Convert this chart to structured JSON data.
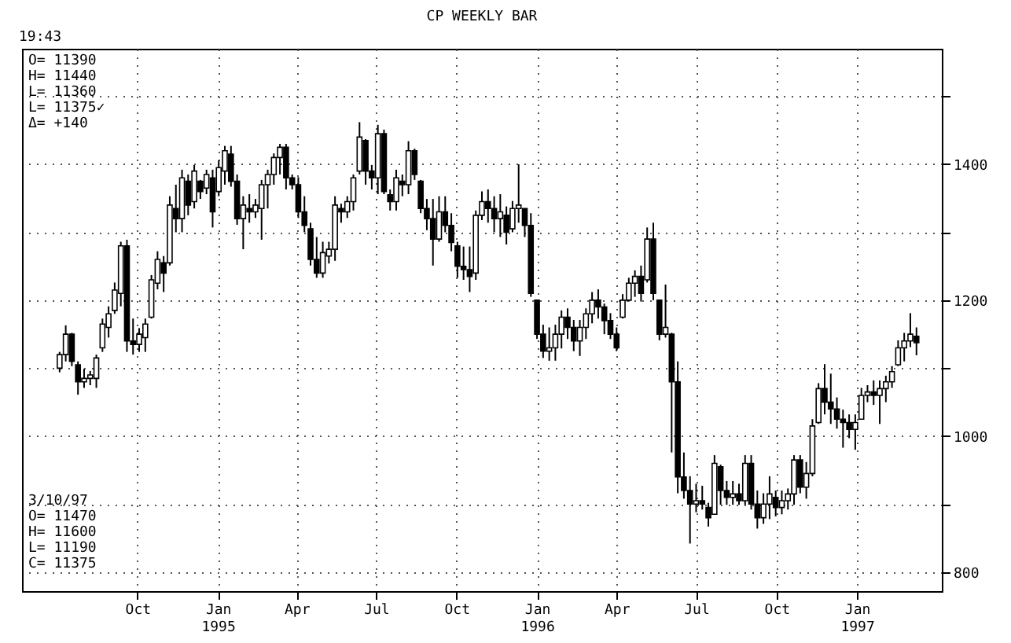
{
  "chart_data": {
    "type": "candlestick",
    "title": "CP WEEKLY BAR",
    "annotations": [
      "19:43",
      "O= 11390\nH= 11440\nL= 11360\nL= 11375✓\nΔ=  +140",
      "3/10/97\nO= 11470\nH= 11600\nL= 11190\nC= 11375"
    ],
    "x": [
      "1994-07-04",
      "1994-07-11",
      "1994-07-18",
      "1994-07-25",
      "1994-08-01",
      "1994-08-08",
      "1994-08-15",
      "1994-08-22",
      "1994-08-29",
      "1994-09-05",
      "1994-09-12",
      "1994-09-19",
      "1994-09-26",
      "1994-10-03",
      "1994-10-10",
      "1994-10-17",
      "1994-10-24",
      "1994-10-31",
      "1994-11-07",
      "1994-11-14",
      "1994-11-21",
      "1994-11-28",
      "1994-12-05",
      "1994-12-12",
      "1994-12-19",
      "1994-12-26",
      "1995-01-02",
      "1995-01-09",
      "1995-01-16",
      "1995-01-23",
      "1995-01-30",
      "1995-02-06",
      "1995-02-13",
      "1995-02-20",
      "1995-02-27",
      "1995-03-06",
      "1995-03-13",
      "1995-03-20",
      "1995-03-27",
      "1995-04-03",
      "1995-04-10",
      "1995-04-17",
      "1995-04-24",
      "1995-05-01",
      "1995-05-08",
      "1995-05-15",
      "1995-05-22",
      "1995-05-29",
      "1995-06-05",
      "1995-06-12",
      "1995-06-19",
      "1995-06-26",
      "1995-07-03",
      "1995-07-10",
      "1995-07-17",
      "1995-07-24",
      "1995-07-31",
      "1995-08-07",
      "1995-08-14",
      "1995-08-21",
      "1995-08-28",
      "1995-09-04",
      "1995-09-11",
      "1995-09-18",
      "1995-09-25",
      "1995-10-02",
      "1995-10-09",
      "1995-10-16",
      "1995-10-23",
      "1995-10-30",
      "1995-11-06",
      "1995-11-13",
      "1995-11-20",
      "1995-11-27",
      "1995-12-04",
      "1995-12-11",
      "1995-12-18",
      "1995-12-25",
      "1996-01-01",
      "1996-01-08",
      "1996-01-15",
      "1996-01-22",
      "1996-01-29",
      "1996-02-05",
      "1996-02-12",
      "1996-02-19",
      "1996-02-26",
      "1996-03-04",
      "1996-03-11",
      "1996-03-18",
      "1996-03-25",
      "1996-04-01",
      "1996-04-08",
      "1996-04-15",
      "1996-04-22",
      "1996-04-29",
      "1996-05-06",
      "1996-05-13",
      "1996-05-20",
      "1996-05-27",
      "1996-06-03",
      "1996-06-10",
      "1996-06-17",
      "1996-06-24",
      "1996-07-01",
      "1996-07-08",
      "1996-07-15",
      "1996-07-22",
      "1996-07-29",
      "1996-08-05",
      "1996-08-12",
      "1996-08-19",
      "1996-08-26",
      "1996-09-02",
      "1996-09-09",
      "1996-09-16",
      "1996-09-23",
      "1996-09-30",
      "1996-10-07",
      "1996-10-14",
      "1996-10-21",
      "1996-10-28",
      "1996-11-04",
      "1996-11-11",
      "1996-11-18",
      "1996-11-25",
      "1996-12-02",
      "1996-12-09",
      "1996-12-16",
      "1996-12-23",
      "1996-12-30",
      "1997-01-06",
      "1997-01-13",
      "1997-01-20",
      "1997-01-27",
      "1997-02-03",
      "1997-02-10",
      "1997-02-17",
      "1997-02-24",
      "1997-03-03",
      "1997-03-10"
    ],
    "ohlc": [
      [
        1100,
        1124,
        1094,
        1120
      ],
      [
        1120,
        1163,
        1110,
        1150
      ],
      [
        1150,
        1152,
        1103,
        1110
      ],
      [
        1105,
        1110,
        1061,
        1080
      ],
      [
        1080,
        1099,
        1071,
        1085
      ],
      [
        1085,
        1096,
        1075,
        1090
      ],
      [
        1085,
        1120,
        1071,
        1115
      ],
      [
        1130,
        1173,
        1124,
        1165
      ],
      [
        1160,
        1191,
        1145,
        1180
      ],
      [
        1185,
        1226,
        1180,
        1215
      ],
      [
        1210,
        1286,
        1191,
        1280
      ],
      [
        1280,
        1289,
        1124,
        1140
      ],
      [
        1140,
        1173,
        1120,
        1135
      ],
      [
        1135,
        1159,
        1124,
        1150
      ],
      [
        1145,
        1173,
        1124,
        1165
      ],
      [
        1175,
        1237,
        1173,
        1230
      ],
      [
        1225,
        1272,
        1216,
        1260
      ],
      [
        1255,
        1265,
        1212,
        1240
      ],
      [
        1255,
        1353,
        1251,
        1340
      ],
      [
        1335,
        1370,
        1300,
        1320
      ],
      [
        1320,
        1392,
        1300,
        1380
      ],
      [
        1375,
        1385,
        1325,
        1340
      ],
      [
        1345,
        1399,
        1335,
        1390
      ],
      [
        1375,
        1377,
        1349,
        1360
      ],
      [
        1365,
        1392,
        1356,
        1385
      ],
      [
        1380,
        1392,
        1307,
        1330
      ],
      [
        1360,
        1406,
        1353,
        1395
      ],
      [
        1390,
        1427,
        1370,
        1420
      ],
      [
        1415,
        1427,
        1367,
        1375
      ],
      [
        1375,
        1385,
        1311,
        1320
      ],
      [
        1320,
        1353,
        1275,
        1340
      ],
      [
        1335,
        1356,
        1314,
        1330
      ],
      [
        1330,
        1349,
        1321,
        1340
      ],
      [
        1335,
        1377,
        1289,
        1370
      ],
      [
        1370,
        1392,
        1335,
        1385
      ],
      [
        1385,
        1416,
        1370,
        1410
      ],
      [
        1410,
        1430,
        1385,
        1425
      ],
      [
        1425,
        1430,
        1363,
        1380
      ],
      [
        1380,
        1385,
        1363,
        1370
      ],
      [
        1370,
        1381,
        1321,
        1330
      ],
      [
        1330,
        1353,
        1300,
        1310
      ],
      [
        1305,
        1314,
        1251,
        1260
      ],
      [
        1260,
        1293,
        1233,
        1240
      ],
      [
        1240,
        1286,
        1233,
        1270
      ],
      [
        1265,
        1286,
        1254,
        1275
      ],
      [
        1275,
        1353,
        1258,
        1340
      ],
      [
        1335,
        1342,
        1314,
        1330
      ],
      [
        1330,
        1353,
        1321,
        1345
      ],
      [
        1345,
        1385,
        1332,
        1380
      ],
      [
        1390,
        1462,
        1385,
        1440
      ],
      [
        1435,
        1437,
        1370,
        1390
      ],
      [
        1390,
        1399,
        1363,
        1380
      ],
      [
        1380,
        1458,
        1356,
        1445
      ],
      [
        1445,
        1451,
        1356,
        1360
      ],
      [
        1355,
        1363,
        1332,
        1345
      ],
      [
        1345,
        1392,
        1332,
        1380
      ],
      [
        1375,
        1385,
        1353,
        1370
      ],
      [
        1370,
        1434,
        1356,
        1420
      ],
      [
        1420,
        1423,
        1377,
        1385
      ],
      [
        1375,
        1377,
        1328,
        1335
      ],
      [
        1335,
        1349,
        1303,
        1320
      ],
      [
        1320,
        1349,
        1251,
        1290
      ],
      [
        1290,
        1353,
        1286,
        1330
      ],
      [
        1330,
        1353,
        1300,
        1310
      ],
      [
        1310,
        1328,
        1272,
        1285
      ],
      [
        1280,
        1286,
        1233,
        1250
      ],
      [
        1250,
        1279,
        1230,
        1245
      ],
      [
        1245,
        1279,
        1212,
        1235
      ],
      [
        1240,
        1332,
        1230,
        1325
      ],
      [
        1325,
        1360,
        1318,
        1345
      ],
      [
        1345,
        1363,
        1314,
        1335
      ],
      [
        1335,
        1353,
        1300,
        1320
      ],
      [
        1320,
        1356,
        1293,
        1330
      ],
      [
        1325,
        1338,
        1282,
        1300
      ],
      [
        1305,
        1346,
        1300,
        1335
      ],
      [
        1335,
        1400,
        1314,
        1340
      ],
      [
        1335,
        1335,
        1293,
        1310
      ],
      [
        1310,
        1328,
        1205,
        1210
      ],
      [
        1200,
        1200,
        1143,
        1150
      ],
      [
        1150,
        1164,
        1115,
        1125
      ],
      [
        1125,
        1160,
        1111,
        1130
      ],
      [
        1130,
        1164,
        1111,
        1150
      ],
      [
        1150,
        1185,
        1129,
        1175
      ],
      [
        1175,
        1188,
        1143,
        1160
      ],
      [
        1160,
        1171,
        1125,
        1140
      ],
      [
        1140,
        1171,
        1118,
        1160
      ],
      [
        1160,
        1188,
        1143,
        1180
      ],
      [
        1180,
        1212,
        1166,
        1200
      ],
      [
        1200,
        1216,
        1173,
        1190
      ],
      [
        1190,
        1195,
        1150,
        1170
      ],
      [
        1170,
        1181,
        1143,
        1150
      ],
      [
        1150,
        1160,
        1125,
        1130
      ],
      [
        1175,
        1209,
        1173,
        1200
      ],
      [
        1200,
        1233,
        1198,
        1225
      ],
      [
        1225,
        1244,
        1205,
        1235
      ],
      [
        1235,
        1251,
        1198,
        1210
      ],
      [
        1230,
        1307,
        1226,
        1290
      ],
      [
        1290,
        1314,
        1200,
        1210
      ],
      [
        1200,
        1200,
        1141,
        1150
      ],
      [
        1150,
        1223,
        1145,
        1160
      ],
      [
        1150,
        1152,
        976,
        1080
      ],
      [
        1080,
        1110,
        916,
        940
      ],
      [
        940,
        976,
        908,
        920
      ],
      [
        920,
        941,
        842,
        900
      ],
      [
        900,
        930,
        888,
        905
      ],
      [
        905,
        927,
        892,
        900
      ],
      [
        895,
        902,
        867,
        880
      ],
      [
        885,
        972,
        885,
        960
      ],
      [
        955,
        958,
        899,
        920
      ],
      [
        920,
        934,
        899,
        910
      ],
      [
        910,
        934,
        899,
        915
      ],
      [
        915,
        930,
        899,
        905
      ],
      [
        905,
        972,
        899,
        960
      ],
      [
        960,
        972,
        892,
        900
      ],
      [
        900,
        920,
        864,
        880
      ],
      [
        880,
        916,
        871,
        900
      ],
      [
        900,
        941,
        878,
        915
      ],
      [
        910,
        920,
        882,
        895
      ],
      [
        895,
        920,
        885,
        905
      ],
      [
        905,
        923,
        892,
        915
      ],
      [
        915,
        972,
        899,
        965
      ],
      [
        965,
        972,
        916,
        925
      ],
      [
        925,
        962,
        908,
        945
      ],
      [
        945,
        1025,
        941,
        1015
      ],
      [
        1020,
        1078,
        1018,
        1070
      ],
      [
        1070,
        1106,
        1032,
        1050
      ],
      [
        1050,
        1092,
        1018,
        1040
      ],
      [
        1040,
        1057,
        1011,
        1025
      ],
      [
        1025,
        1039,
        983,
        1020
      ],
      [
        1020,
        1032,
        997,
        1010
      ],
      [
        1010,
        1032,
        980,
        1020
      ],
      [
        1025,
        1071,
        1025,
        1060
      ],
      [
        1060,
        1075,
        1050,
        1065
      ],
      [
        1065,
        1082,
        1046,
        1060
      ],
      [
        1060,
        1082,
        1018,
        1070
      ],
      [
        1070,
        1089,
        1050,
        1080
      ],
      [
        1080,
        1103,
        1071,
        1095
      ],
      [
        1105,
        1141,
        1103,
        1130
      ],
      [
        1130,
        1152,
        1110,
        1140
      ],
      [
        1140,
        1181,
        1131,
        1150
      ],
      [
        1147,
        1160,
        1119,
        1137.5
      ]
    ],
    "xlim": [
      "1994-05-22",
      "1997-04-08"
    ],
    "xticks": [
      {
        "value": "1994-10-01",
        "label": "Oct"
      },
      {
        "value": "1995-01-01",
        "label": "Jan\n1995"
      },
      {
        "value": "1995-04-01",
        "label": "Apr"
      },
      {
        "value": "1995-07-01",
        "label": "Jul"
      },
      {
        "value": "1995-10-01",
        "label": "Oct"
      },
      {
        "value": "1996-01-01",
        "label": "Jan\n1996"
      },
      {
        "value": "1996-04-01",
        "label": "Apr"
      },
      {
        "value": "1996-07-01",
        "label": "Jul"
      },
      {
        "value": "1996-10-01",
        "label": "Oct"
      },
      {
        "value": "1997-01-01",
        "label": "Jan\n1997"
      }
    ],
    "ylim": [
      772,
      1570
    ],
    "yticks": [
      800,
      {
        "value": 900,
        "label": null
      },
      1000,
      {
        "value": 1100,
        "label": null
      },
      1200,
      {
        "value": 1300,
        "label": null
      },
      1400,
      {
        "value": 1500,
        "label": null
      }
    ],
    "grid": true
  }
}
